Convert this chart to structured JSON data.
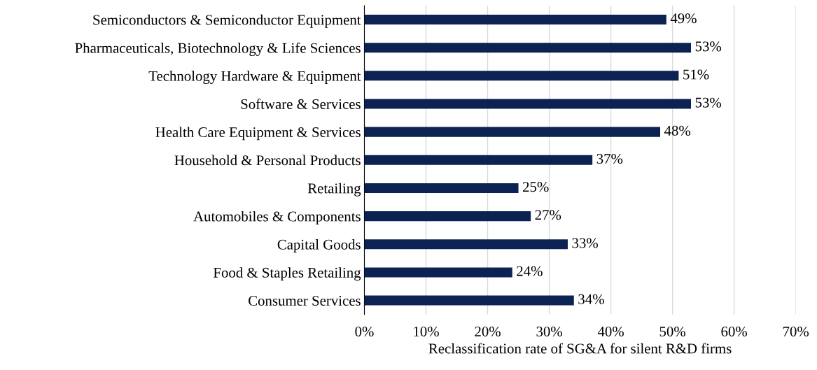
{
  "chart_data": {
    "type": "bar",
    "orientation": "horizontal",
    "xlabel": "Reclassification rate of SG&A for silent R&D firms",
    "categories": [
      "Semiconductors & Semiconductor Equipment",
      "Pharmaceuticals, Biotechnology & Life Sciences",
      "Technology Hardware & Equipment",
      "Software & Services",
      "Health Care Equipment & Services",
      "Household & Personal Products",
      "Retailing",
      "Automobiles & Components",
      "Capital Goods",
      "Food & Staples Retailing",
      "Consumer Services"
    ],
    "values": [
      49,
      53,
      51,
      53,
      48,
      37,
      25,
      27,
      33,
      24,
      34
    ],
    "value_labels": [
      "49%",
      "53%",
      "51%",
      "53%",
      "48%",
      "37%",
      "25%",
      "27%",
      "33%",
      "24%",
      "34%"
    ],
    "color": "#0b2252",
    "xlim": [
      0,
      70
    ],
    "xticks": [
      {
        "value": 0,
        "label": "0%"
      },
      {
        "value": 10,
        "label": "10%"
      },
      {
        "value": 20,
        "label": "20%"
      },
      {
        "value": 30,
        "label": "30%"
      },
      {
        "value": 40,
        "label": "40%"
      },
      {
        "value": 50,
        "label": "50%"
      },
      {
        "value": 60,
        "label": "60%"
      },
      {
        "value": 70,
        "label": "70%"
      }
    ],
    "grid": "x",
    "legend": false
  }
}
